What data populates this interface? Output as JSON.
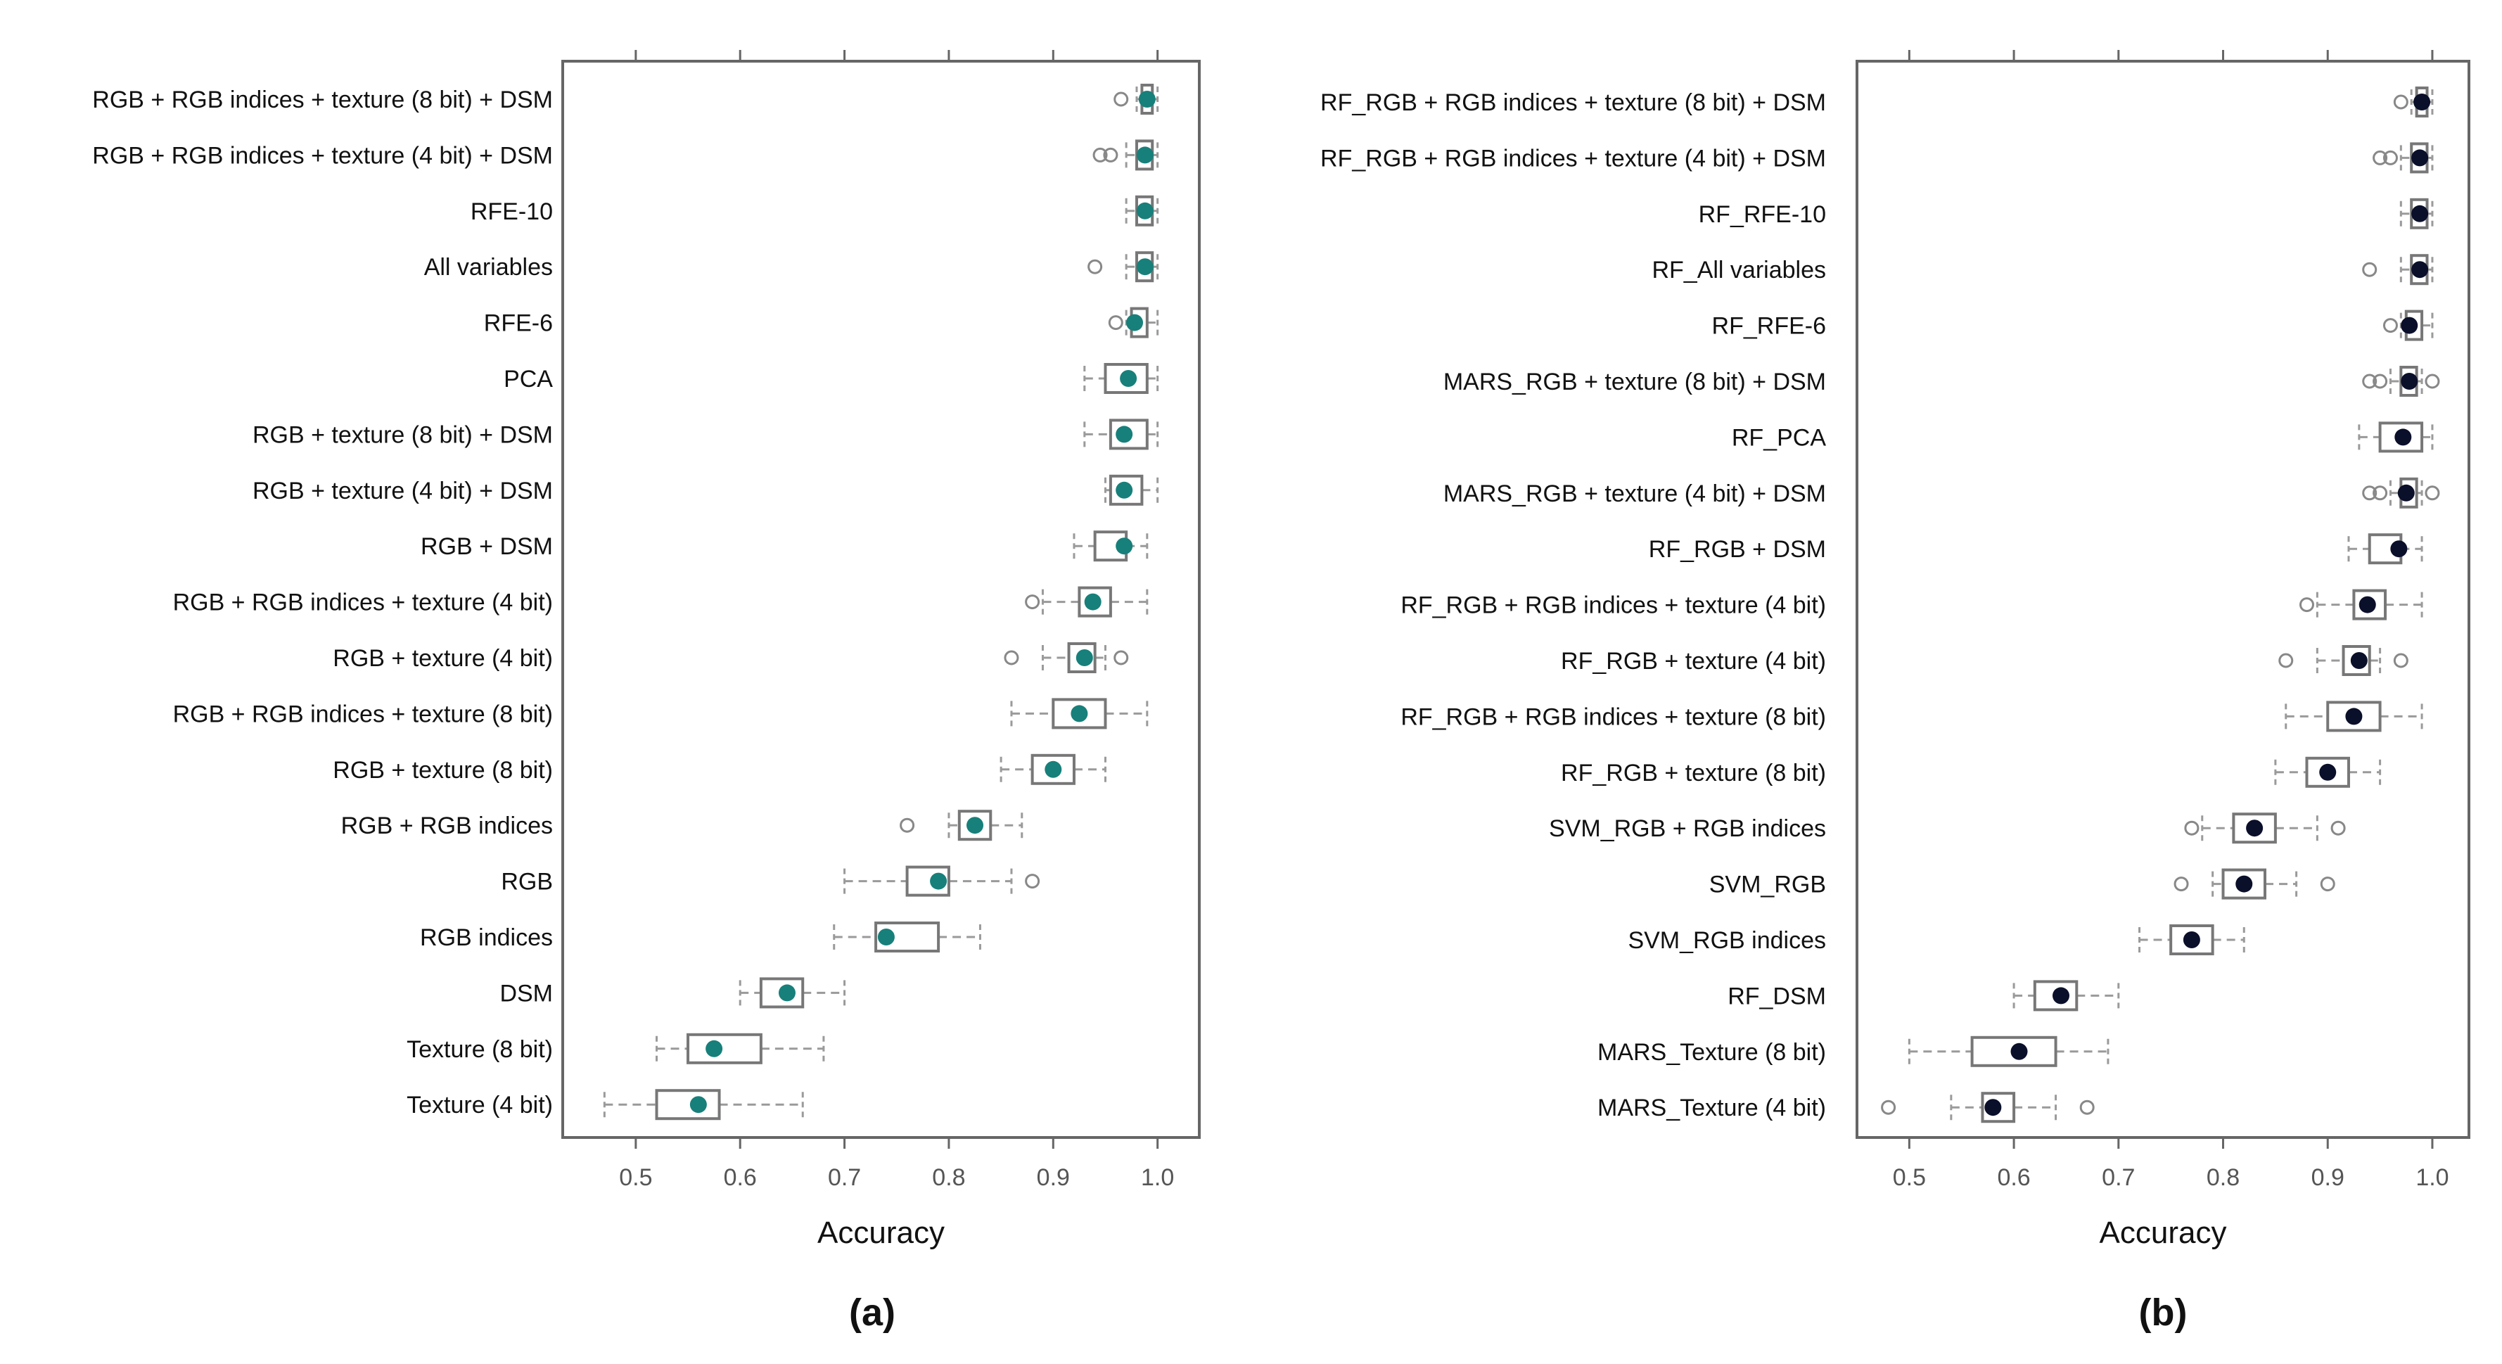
{
  "colors": {
    "box": "#777777",
    "whisker": "#9a9a9a",
    "outlier": "#888888",
    "frame": "#666666",
    "dot_a": "#17807a",
    "dot_b": "#0a0f2a"
  },
  "chart_data": [
    {
      "type": "boxplot",
      "panel_label": "(a)",
      "xlabel": "Accuracy",
      "xlim": [
        0.43,
        1.04
      ],
      "xticks": [
        0.5,
        0.6,
        0.7,
        0.8,
        0.9,
        1.0
      ],
      "xtick_labels": [
        "0.5",
        "0.6",
        "0.7",
        "0.8",
        "0.9",
        "1.0"
      ],
      "dot_color_key": "dot_a",
      "rows": [
        {
          "label": "RGB + RGB indices + texture (8 bit) + DSM",
          "wmin": 0.98,
          "q1": 0.985,
          "q3": 0.995,
          "wmax": 1.0,
          "mean": 0.99,
          "outliers": [
            0.965
          ]
        },
        {
          "label": "RGB + RGB indices + texture (4 bit) + DSM",
          "wmin": 0.97,
          "q1": 0.98,
          "q3": 0.995,
          "wmax": 1.0,
          "mean": 0.988,
          "outliers": [
            0.945,
            0.955
          ]
        },
        {
          "label": "RFE-10",
          "wmin": 0.97,
          "q1": 0.98,
          "q3": 0.995,
          "wmax": 1.0,
          "mean": 0.988,
          "outliers": []
        },
        {
          "label": "All variables",
          "wmin": 0.97,
          "q1": 0.98,
          "q3": 0.995,
          "wmax": 1.0,
          "mean": 0.988,
          "outliers": [
            0.94
          ]
        },
        {
          "label": "RFE-6",
          "wmin": 0.97,
          "q1": 0.975,
          "q3": 0.99,
          "wmax": 1.0,
          "mean": 0.978,
          "outliers": [
            0.96
          ]
        },
        {
          "label": "PCA",
          "wmin": 0.93,
          "q1": 0.95,
          "q3": 0.99,
          "wmax": 1.0,
          "mean": 0.972,
          "outliers": []
        },
        {
          "label": "RGB + texture (8 bit) + DSM",
          "wmin": 0.93,
          "q1": 0.955,
          "q3": 0.99,
          "wmax": 1.0,
          "mean": 0.968,
          "outliers": []
        },
        {
          "label": "RGB + texture (4 bit) + DSM",
          "wmin": 0.95,
          "q1": 0.955,
          "q3": 0.985,
          "wmax": 1.0,
          "mean": 0.968,
          "outliers": []
        },
        {
          "label": "RGB + DSM",
          "wmin": 0.92,
          "q1": 0.94,
          "q3": 0.97,
          "wmax": 0.99,
          "mean": 0.968,
          "outliers": []
        },
        {
          "label": "RGB + RGB indices + texture (4 bit)",
          "wmin": 0.89,
          "q1": 0.925,
          "q3": 0.955,
          "wmax": 0.99,
          "mean": 0.938,
          "outliers": [
            0.88
          ]
        },
        {
          "label": "RGB + texture (4 bit)",
          "wmin": 0.89,
          "q1": 0.915,
          "q3": 0.94,
          "wmax": 0.95,
          "mean": 0.93,
          "outliers": [
            0.86,
            0.965
          ]
        },
        {
          "label": "RGB + RGB indices + texture (8 bit)",
          "wmin": 0.86,
          "q1": 0.9,
          "q3": 0.95,
          "wmax": 0.99,
          "mean": 0.925,
          "outliers": []
        },
        {
          "label": "RGB + texture (8 bit)",
          "wmin": 0.85,
          "q1": 0.88,
          "q3": 0.92,
          "wmax": 0.95,
          "mean": 0.9,
          "outliers": []
        },
        {
          "label": "RGB + RGB indices",
          "wmin": 0.8,
          "q1": 0.81,
          "q3": 0.84,
          "wmax": 0.87,
          "mean": 0.825,
          "outliers": [
            0.76
          ]
        },
        {
          "label": "RGB",
          "wmin": 0.7,
          "q1": 0.76,
          "q3": 0.8,
          "wmax": 0.86,
          "mean": 0.79,
          "outliers": [
            0.88
          ]
        },
        {
          "label": "RGB indices",
          "wmin": 0.69,
          "q1": 0.73,
          "q3": 0.79,
          "wmax": 0.83,
          "mean": 0.74,
          "outliers": []
        },
        {
          "label": "DSM",
          "wmin": 0.6,
          "q1": 0.62,
          "q3": 0.66,
          "wmax": 0.7,
          "mean": 0.645,
          "outliers": []
        },
        {
          "label": "Texture (8 bit)",
          "wmin": 0.52,
          "q1": 0.55,
          "q3": 0.62,
          "wmax": 0.68,
          "mean": 0.575,
          "outliers": []
        },
        {
          "label": "Texture (4 bit)",
          "wmin": 0.47,
          "q1": 0.52,
          "q3": 0.58,
          "wmax": 0.66,
          "mean": 0.56,
          "outliers": []
        }
      ]
    },
    {
      "type": "boxplot",
      "panel_label": "(b)",
      "xlabel": "Accuracy",
      "xlim": [
        0.45,
        1.035
      ],
      "xticks": [
        0.5,
        0.6,
        0.7,
        0.8,
        0.9,
        1.0
      ],
      "xtick_labels": [
        "0.5",
        "0.6",
        "0.7",
        "0.8",
        "0.9",
        "1.0"
      ],
      "dot_color_key": "dot_b",
      "rows": [
        {
          "label": "RF_RGB + RGB indices + texture (8 bit) + DSM",
          "wmin": 0.98,
          "q1": 0.985,
          "q3": 0.995,
          "wmax": 1.0,
          "mean": 0.99,
          "outliers": [
            0.97
          ]
        },
        {
          "label": "RF_RGB + RGB indices + texture (4 bit) + DSM",
          "wmin": 0.97,
          "q1": 0.98,
          "q3": 0.995,
          "wmax": 1.0,
          "mean": 0.988,
          "outliers": [
            0.95,
            0.96
          ]
        },
        {
          "label": "RF_RFE-10",
          "wmin": 0.97,
          "q1": 0.98,
          "q3": 0.995,
          "wmax": 1.0,
          "mean": 0.988,
          "outliers": []
        },
        {
          "label": "RF_All variables",
          "wmin": 0.97,
          "q1": 0.98,
          "q3": 0.995,
          "wmax": 1.0,
          "mean": 0.988,
          "outliers": [
            0.94
          ]
        },
        {
          "label": "RF_RFE-6",
          "wmin": 0.97,
          "q1": 0.975,
          "q3": 0.99,
          "wmax": 1.0,
          "mean": 0.978,
          "outliers": [
            0.96
          ]
        },
        {
          "label": "MARS_RGB + texture (8 bit) + DSM",
          "wmin": 0.96,
          "q1": 0.97,
          "q3": 0.985,
          "wmax": 0.99,
          "mean": 0.978,
          "outliers": [
            0.94,
            0.95,
            1.0
          ]
        },
        {
          "label": "RF_PCA",
          "wmin": 0.93,
          "q1": 0.95,
          "q3": 0.99,
          "wmax": 1.0,
          "mean": 0.972,
          "outliers": []
        },
        {
          "label": "MARS_RGB + texture (4 bit) + DSM",
          "wmin": 0.96,
          "q1": 0.97,
          "q3": 0.985,
          "wmax": 0.99,
          "mean": 0.975,
          "outliers": [
            0.94,
            0.95,
            1.0
          ]
        },
        {
          "label": "RF_RGB + DSM",
          "wmin": 0.92,
          "q1": 0.94,
          "q3": 0.97,
          "wmax": 0.99,
          "mean": 0.968,
          "outliers": []
        },
        {
          "label": "RF_RGB + RGB indices + texture (4 bit)",
          "wmin": 0.89,
          "q1": 0.925,
          "q3": 0.955,
          "wmax": 0.99,
          "mean": 0.938,
          "outliers": [
            0.88
          ]
        },
        {
          "label": "RF_RGB + texture (4 bit)",
          "wmin": 0.89,
          "q1": 0.915,
          "q3": 0.94,
          "wmax": 0.95,
          "mean": 0.93,
          "outliers": [
            0.86,
            0.97
          ]
        },
        {
          "label": "RF_RGB + RGB indices + texture (8 bit)",
          "wmin": 0.86,
          "q1": 0.9,
          "q3": 0.95,
          "wmax": 0.99,
          "mean": 0.925,
          "outliers": []
        },
        {
          "label": "RF_RGB + texture (8 bit)",
          "wmin": 0.85,
          "q1": 0.88,
          "q3": 0.92,
          "wmax": 0.95,
          "mean": 0.9,
          "outliers": []
        },
        {
          "label": "SVM_RGB + RGB indices",
          "wmin": 0.78,
          "q1": 0.81,
          "q3": 0.85,
          "wmax": 0.89,
          "mean": 0.83,
          "outliers": [
            0.77,
            0.91
          ]
        },
        {
          "label": "SVM_RGB",
          "wmin": 0.79,
          "q1": 0.8,
          "q3": 0.84,
          "wmax": 0.87,
          "mean": 0.82,
          "outliers": [
            0.76,
            0.9
          ]
        },
        {
          "label": "SVM_RGB indices",
          "wmin": 0.72,
          "q1": 0.75,
          "q3": 0.79,
          "wmax": 0.82,
          "mean": 0.77,
          "outliers": []
        },
        {
          "label": "RF_DSM",
          "wmin": 0.6,
          "q1": 0.62,
          "q3": 0.66,
          "wmax": 0.7,
          "mean": 0.645,
          "outliers": []
        },
        {
          "label": "MARS_Texture (8 bit)",
          "wmin": 0.5,
          "q1": 0.56,
          "q3": 0.64,
          "wmax": 0.69,
          "mean": 0.605,
          "outliers": []
        },
        {
          "label": "MARS_Texture (4 bit)",
          "wmin": 0.54,
          "q1": 0.57,
          "q3": 0.6,
          "wmax": 0.64,
          "mean": 0.58,
          "outliers": [
            0.48,
            0.67
          ]
        }
      ]
    }
  ]
}
